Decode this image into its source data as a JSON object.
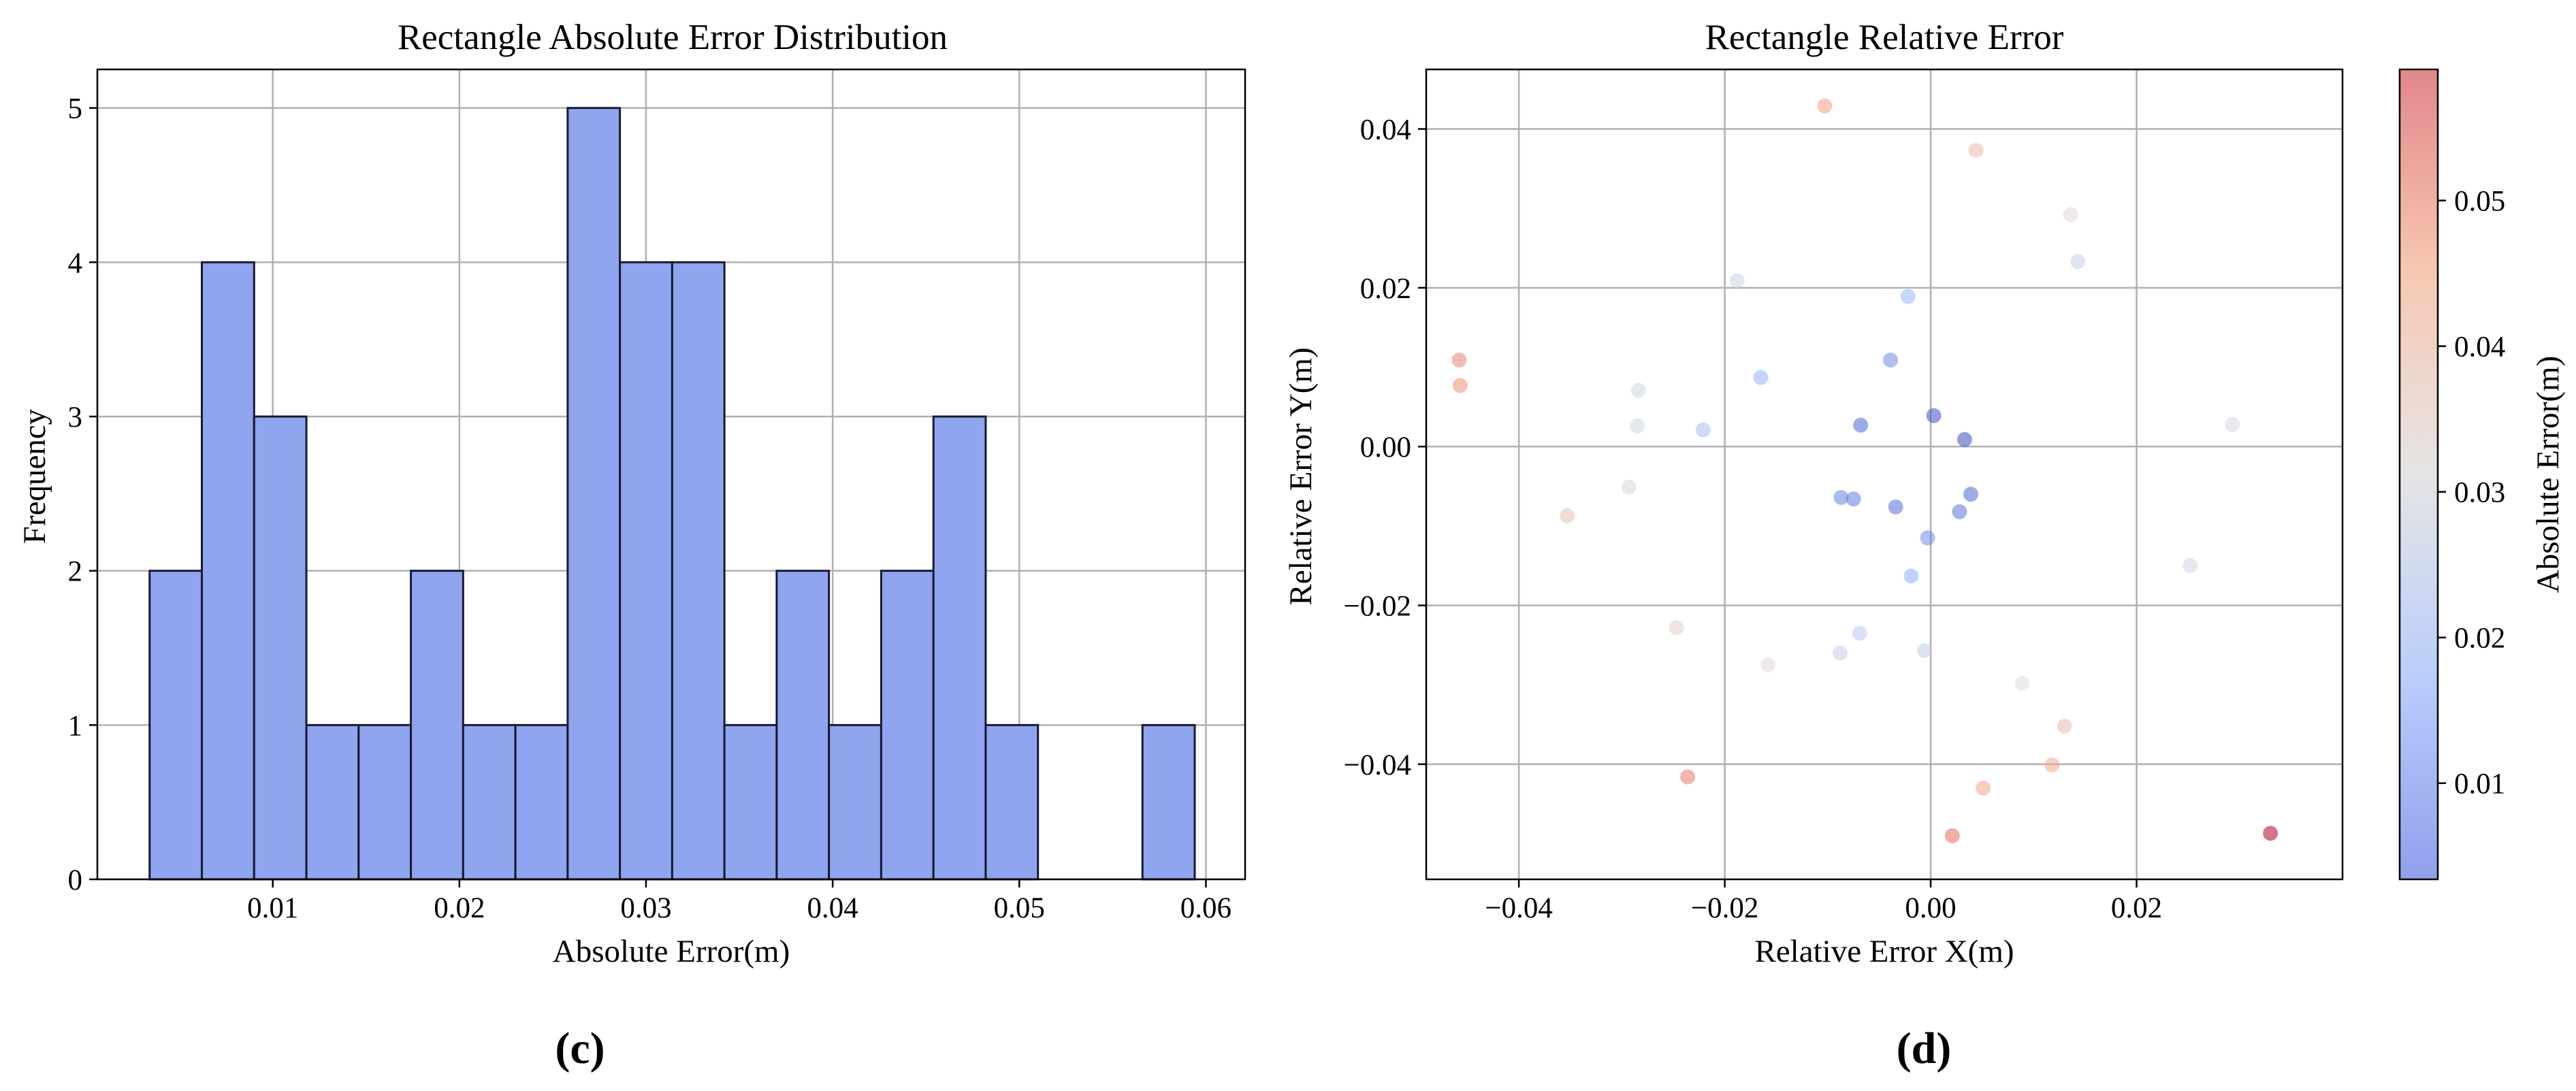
{
  "chart_data": [
    {
      "type": "bar",
      "subtype": "histogram",
      "panel_label": "(c)",
      "title": "Rectangle Absolute Error Distribution",
      "xlabel": "Absolute Error(m)",
      "ylabel": "Frequency",
      "xlim": [
        0.0006,
        0.0621
      ],
      "ylim": [
        0,
        5.25
      ],
      "xticks": [
        0.01,
        0.02,
        0.03,
        0.04,
        0.05,
        0.06
      ],
      "xtick_labels": [
        "0.01",
        "0.02",
        "0.03",
        "0.04",
        "0.05",
        "0.06"
      ],
      "yticks": [
        0,
        1,
        2,
        3,
        4,
        5
      ],
      "ytick_labels": [
        "0",
        "1",
        "2",
        "3",
        "4",
        "5"
      ],
      "grid": true,
      "bar_color": "#8fa5f0",
      "edge_color": "#1a1a2e",
      "bin_start": 0.0034,
      "bin_width": 0.0028,
      "counts": [
        2,
        4,
        3,
        1,
        1,
        2,
        1,
        1,
        5,
        4,
        4,
        1,
        2,
        1,
        2,
        3,
        1,
        0,
        0,
        1
      ]
    },
    {
      "type": "scatter",
      "panel_label": "(d)",
      "title": "Rectangle Relative Error",
      "xlabel": "Relative Error X(m)",
      "ylabel": "Relative Error Y(m)",
      "xlim": [
        -0.049,
        0.04
      ],
      "ylim": [
        -0.0545,
        0.0475
      ],
      "xticks": [
        -0.04,
        -0.02,
        0.0,
        0.02
      ],
      "xtick_labels": [
        "−0.04",
        "−0.02",
        "0.00",
        "0.02"
      ],
      "yticks": [
        -0.04,
        -0.02,
        0.0,
        0.02,
        0.04
      ],
      "ytick_labels": [
        "−0.04",
        "−0.02",
        "0.00",
        "0.02",
        "0.04"
      ],
      "grid": true,
      "colormap": "coolwarm",
      "colorbar": {
        "label": "Absolute Error(m)",
        "range": [
          0.0034,
          0.059
        ],
        "ticks": [
          0.01,
          0.02,
          0.03,
          0.04,
          0.05
        ],
        "tick_labels": [
          "0.01",
          "0.02",
          "0.03",
          "0.04",
          "0.05"
        ]
      },
      "points": [
        {
          "x": -0.0103,
          "y": 0.0429,
          "err": 0.044
        },
        {
          "x": 0.0044,
          "y": 0.0373,
          "err": 0.038
        },
        {
          "x": 0.0136,
          "y": 0.0292,
          "err": 0.032
        },
        {
          "x": 0.0143,
          "y": 0.0233,
          "err": 0.027
        },
        {
          "x": -0.0188,
          "y": 0.0209,
          "err": 0.028
        },
        {
          "x": -0.0022,
          "y": 0.0189,
          "err": 0.019
        },
        {
          "x": -0.0458,
          "y": 0.0109,
          "err": 0.047
        },
        {
          "x": -0.0457,
          "y": 0.0077,
          "err": 0.046
        },
        {
          "x": -0.0039,
          "y": 0.0109,
          "err": 0.012
        },
        {
          "x": -0.0165,
          "y": 0.0087,
          "err": 0.018
        },
        {
          "x": -0.0284,
          "y": 0.0071,
          "err": 0.029
        },
        {
          "x": -0.0285,
          "y": 0.0026,
          "err": 0.029
        },
        {
          "x": -0.0221,
          "y": 0.0021,
          "err": 0.022
        },
        {
          "x": -0.0068,
          "y": 0.0027,
          "err": 0.007
        },
        {
          "x": 0.0003,
          "y": 0.0039,
          "err": 0.004
        },
        {
          "x": 0.0033,
          "y": 0.0009,
          "err": 0.0034
        },
        {
          "x": 0.0293,
          "y": 0.0028,
          "err": 0.03
        },
        {
          "x": -0.0293,
          "y": -0.0051,
          "err": 0.03
        },
        {
          "x": -0.0087,
          "y": -0.0064,
          "err": 0.011
        },
        {
          "x": -0.0075,
          "y": -0.0066,
          "err": 0.01
        },
        {
          "x": -0.0034,
          "y": -0.0076,
          "err": 0.008
        },
        {
          "x": 0.0039,
          "y": -0.006,
          "err": 0.007
        },
        {
          "x": 0.0028,
          "y": -0.0082,
          "err": 0.009
        },
        {
          "x": -0.0353,
          "y": -0.0087,
          "err": 0.037
        },
        {
          "x": -0.0003,
          "y": -0.0115,
          "err": 0.012
        },
        {
          "x": -0.0019,
          "y": -0.0163,
          "err": 0.017
        },
        {
          "x": 0.0252,
          "y": -0.015,
          "err": 0.029
        },
        {
          "x": -0.0247,
          "y": -0.0228,
          "err": 0.034
        },
        {
          "x": -0.0069,
          "y": -0.0235,
          "err": 0.025
        },
        {
          "x": -0.0088,
          "y": -0.026,
          "err": 0.027
        },
        {
          "x": -0.0006,
          "y": -0.0257,
          "err": 0.026
        },
        {
          "x": -0.0158,
          "y": -0.0275,
          "err": 0.032
        },
        {
          "x": 0.0089,
          "y": -0.0298,
          "err": 0.031
        },
        {
          "x": 0.013,
          "y": -0.0352,
          "err": 0.038
        },
        {
          "x": 0.0118,
          "y": -0.0401,
          "err": 0.042
        },
        {
          "x": -0.0236,
          "y": -0.0416,
          "err": 0.048
        },
        {
          "x": 0.0051,
          "y": -0.043,
          "err": 0.043
        },
        {
          "x": 0.0021,
          "y": -0.049,
          "err": 0.049
        },
        {
          "x": 0.033,
          "y": -0.0487,
          "err": 0.059
        }
      ]
    }
  ]
}
